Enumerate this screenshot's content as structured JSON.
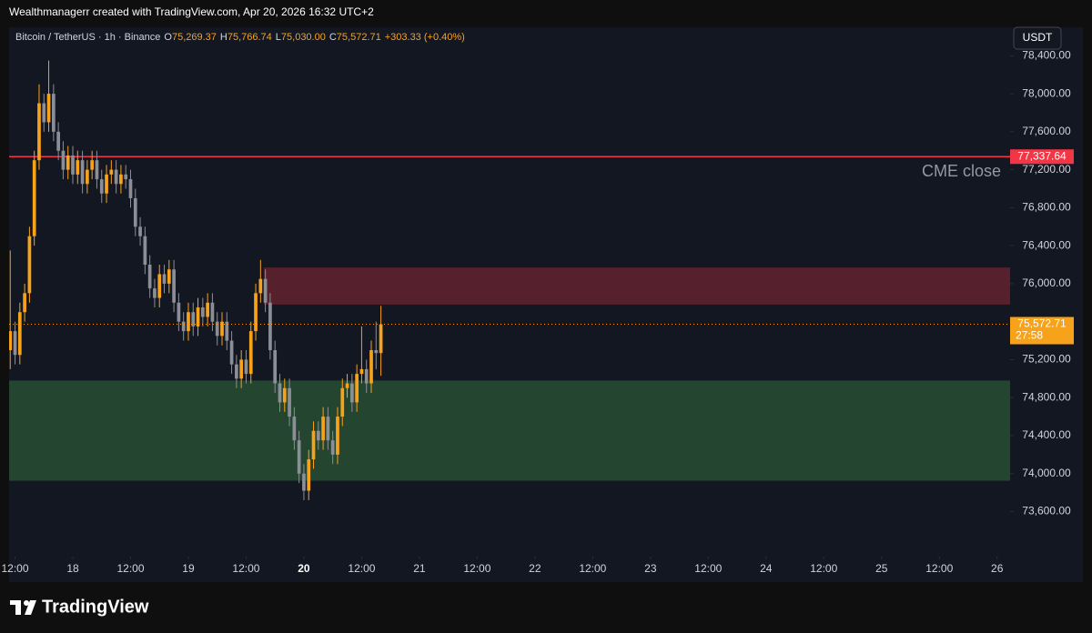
{
  "header": {
    "text": "Wealthmanagerr created with TradingView.com, Apr 20, 2026 16:32 UTC+2"
  },
  "footer": {
    "brand": "TradingView"
  },
  "chart_data": {
    "type": "candlestick",
    "legend": {
      "symbol": "Bitcoin / TetherUS · 1h · Binance",
      "fields": [
        {
          "key": "O",
          "value": "75,269.37"
        },
        {
          "key": "H",
          "value": "75,766.74"
        },
        {
          "key": "L",
          "value": "75,030.00"
        },
        {
          "key": "C",
          "value": "75,572.71"
        }
      ],
      "change": "+303.33 (+0.40%)"
    },
    "currency": "USDT",
    "up_color": "#f7a21b",
    "down_color": "#8b8e97",
    "x": [
      "2026-04-17T11:00",
      "2026-04-17T12:00",
      "2026-04-17T13:00",
      "2026-04-17T14:00",
      "2026-04-17T15:00",
      "2026-04-17T16:00",
      "2026-04-17T17:00",
      "2026-04-17T18:00",
      "2026-04-17T19:00",
      "2026-04-17T20:00",
      "2026-04-17T21:00",
      "2026-04-17T22:00",
      "2026-04-17T23:00",
      "2026-04-18T00:00",
      "2026-04-18T01:00",
      "2026-04-18T02:00",
      "2026-04-18T03:00",
      "2026-04-18T04:00",
      "2026-04-18T05:00",
      "2026-04-18T06:00",
      "2026-04-18T07:00",
      "2026-04-18T08:00",
      "2026-04-18T09:00",
      "2026-04-18T10:00",
      "2026-04-18T11:00",
      "2026-04-18T12:00",
      "2026-04-18T13:00",
      "2026-04-18T14:00",
      "2026-04-18T15:00",
      "2026-04-18T16:00",
      "2026-04-18T17:00",
      "2026-04-18T18:00",
      "2026-04-18T19:00",
      "2026-04-18T20:00",
      "2026-04-18T21:00",
      "2026-04-18T22:00",
      "2026-04-18T23:00",
      "2026-04-19T00:00",
      "2026-04-19T01:00",
      "2026-04-19T02:00",
      "2026-04-19T03:00",
      "2026-04-19T04:00",
      "2026-04-19T05:00",
      "2026-04-19T06:00",
      "2026-04-19T07:00",
      "2026-04-19T08:00",
      "2026-04-19T09:00",
      "2026-04-19T10:00",
      "2026-04-19T11:00",
      "2026-04-19T12:00",
      "2026-04-19T13:00",
      "2026-04-19T14:00",
      "2026-04-19T15:00",
      "2026-04-19T16:00",
      "2026-04-19T17:00",
      "2026-04-19T18:00",
      "2026-04-19T19:00",
      "2026-04-19T20:00",
      "2026-04-19T21:00",
      "2026-04-19T22:00",
      "2026-04-19T23:00",
      "2026-04-20T00:00",
      "2026-04-20T01:00",
      "2026-04-20T02:00",
      "2026-04-20T03:00",
      "2026-04-20T04:00",
      "2026-04-20T05:00",
      "2026-04-20T06:00",
      "2026-04-20T07:00",
      "2026-04-20T08:00",
      "2026-04-20T09:00",
      "2026-04-20T10:00",
      "2026-04-20T11:00",
      "2026-04-20T12:00",
      "2026-04-20T13:00",
      "2026-04-20T14:00",
      "2026-04-20T15:00",
      "2026-04-20T16:00"
    ],
    "open": [
      75300,
      75500,
      75250,
      75700,
      75900,
      76500,
      77300,
      77900,
      77700,
      78000,
      77600,
      77400,
      77200,
      77350,
      77150,
      77300,
      77050,
      77200,
      77300,
      77100,
      76950,
      77150,
      77200,
      77050,
      77150,
      77100,
      76900,
      76600,
      76500,
      76200,
      75950,
      75850,
      76100,
      76000,
      76150,
      75800,
      75600,
      75500,
      75700,
      75550,
      75750,
      75650,
      75800,
      75600,
      75450,
      75600,
      75400,
      75150,
      75000,
      75200,
      75050,
      75500,
      75900,
      76050,
      75800,
      75300,
      74950,
      74750,
      74900,
      74600,
      74350,
      74000,
      73820,
      74150,
      74450,
      74350,
      74600,
      74350,
      74200,
      74600,
      74900,
      74950,
      74750,
      75050,
      75100,
      74950,
      75300,
      75269.37
    ],
    "high": [
      76350,
      75600,
      75800,
      76000,
      76600,
      77400,
      78100,
      78000,
      78350,
      78100,
      77700,
      77500,
      77450,
      77450,
      77400,
      77400,
      77300,
      77400,
      77400,
      77200,
      77250,
      77300,
      77300,
      77250,
      77250,
      77200,
      77000,
      76700,
      76600,
      76300,
      76050,
      76200,
      76200,
      76250,
      76250,
      75900,
      75700,
      75800,
      75800,
      75850,
      75850,
      75900,
      75900,
      75700,
      75700,
      75700,
      75500,
      75250,
      75300,
      75300,
      75600,
      76000,
      76250,
      76150,
      75900,
      75400,
      75050,
      75000,
      75000,
      74700,
      74450,
      74100,
      74250,
      74550,
      74550,
      74700,
      74700,
      74450,
      74700,
      75000,
      75050,
      75050,
      75150,
      75550,
      75200,
      75400,
      75600,
      75766.74
    ],
    "low": [
      75100,
      75150,
      75150,
      75600,
      75800,
      76400,
      77200,
      77600,
      77600,
      77500,
      77300,
      77100,
      77100,
      77050,
      77050,
      76950,
      76950,
      77100,
      77000,
      76850,
      76850,
      77050,
      76950,
      76950,
      77000,
      76800,
      76500,
      76400,
      76100,
      75850,
      75750,
      75750,
      75900,
      75900,
      75700,
      75500,
      75400,
      75400,
      75450,
      75450,
      75550,
      75550,
      75500,
      75350,
      75350,
      75300,
      75050,
      74900,
      74900,
      74950,
      74950,
      75400,
      75800,
      75700,
      75200,
      74850,
      74650,
      74650,
      74500,
      74250,
      73900,
      73720,
      73720,
      74050,
      74250,
      74250,
      74250,
      74100,
      74100,
      74500,
      74800,
      74650,
      74650,
      74950,
      74850,
      74850,
      75100,
      75030.0
    ],
    "close": [
      75500,
      75250,
      75700,
      75900,
      76500,
      77300,
      77900,
      77700,
      78000,
      77600,
      77400,
      77200,
      77350,
      77150,
      77300,
      77050,
      77200,
      77300,
      77100,
      76950,
      77150,
      77200,
      77050,
      77150,
      77100,
      76900,
      76600,
      76500,
      76200,
      75950,
      75850,
      76100,
      76000,
      76150,
      75800,
      75600,
      75500,
      75700,
      75550,
      75750,
      75650,
      75800,
      75600,
      75450,
      75600,
      75400,
      75150,
      75000,
      75200,
      75050,
      75500,
      75900,
      76050,
      75800,
      75300,
      74950,
      74750,
      74900,
      74600,
      74350,
      74000,
      73820,
      74150,
      74450,
      74350,
      74600,
      74350,
      74200,
      74600,
      74900,
      74950,
      74750,
      75050,
      75100,
      74950,
      75300,
      75269.37,
      75572.71
    ],
    "last_price": {
      "label": "75,572.71",
      "countdown": "27:58",
      "color": "#f7a21b"
    },
    "hlines": [
      {
        "value": 77337.64,
        "label": "77,337.64",
        "name": "CME close",
        "color": "#f23645"
      }
    ],
    "zones": [
      {
        "start": "2026-04-19T15:40",
        "top": 76170,
        "bottom": 75780,
        "color": "rgba(242,54,69,0.3)"
      },
      {
        "start": "2026-04-17T10:46",
        "top": 74980,
        "bottom": 73925,
        "color": "rgba(76,175,80,0.3)"
      }
    ],
    "xlim": [
      "2026-04-17T10:46",
      "2026-04-26T02:42"
    ],
    "xticks": [
      {
        "value": "2026-04-17T12:00",
        "label": "12:00"
      },
      {
        "value": "2026-04-18T00:00",
        "label": "18"
      },
      {
        "value": "2026-04-18T12:00",
        "label": "12:00"
      },
      {
        "value": "2026-04-19T00:00",
        "label": "19"
      },
      {
        "value": "2026-04-19T12:00",
        "label": "12:00"
      },
      {
        "value": "2026-04-20T00:00",
        "label": "20"
      },
      {
        "value": "2026-04-20T12:00",
        "label": "12:00"
      },
      {
        "value": "2026-04-21T00:00",
        "label": "21"
      },
      {
        "value": "2026-04-21T12:00",
        "label": "12:00"
      },
      {
        "value": "2026-04-22T00:00",
        "label": "22"
      },
      {
        "value": "2026-04-22T12:00",
        "label": "12:00"
      },
      {
        "value": "2026-04-23T00:00",
        "label": "23"
      },
      {
        "value": "2026-04-23T12:00",
        "label": "12:00"
      },
      {
        "value": "2026-04-24T00:00",
        "label": "24"
      },
      {
        "value": "2026-04-24T12:00",
        "label": "12:00"
      },
      {
        "value": "2026-04-25T00:00",
        "label": "25"
      },
      {
        "value": "2026-04-25T12:00",
        "label": "12:00"
      },
      {
        "value": "2026-04-26T00:00",
        "label": "26"
      }
    ],
    "ylim": [
      73125.9,
      78700
    ],
    "yticks": [
      {
        "value": 73600,
        "label": "73,600.00"
      },
      {
        "value": 74000,
        "label": "74,000.00"
      },
      {
        "value": 74400,
        "label": "74,400.00"
      },
      {
        "value": 74800,
        "label": "74,800.00"
      },
      {
        "value": 75200,
        "label": "75,200.00"
      },
      {
        "value": 75600,
        "label": "75,600.00"
      },
      {
        "value": 76000,
        "label": "76,000.00"
      },
      {
        "value": 76400,
        "label": "76,400.00"
      },
      {
        "value": 76800,
        "label": "76,800.00"
      },
      {
        "value": 77200,
        "label": "77,200.00"
      },
      {
        "value": 77600,
        "label": "77,600.00"
      },
      {
        "value": 78000,
        "label": "78,000.00"
      },
      {
        "value": 78400,
        "label": "78,400.00"
      }
    ],
    "grid": false
  }
}
